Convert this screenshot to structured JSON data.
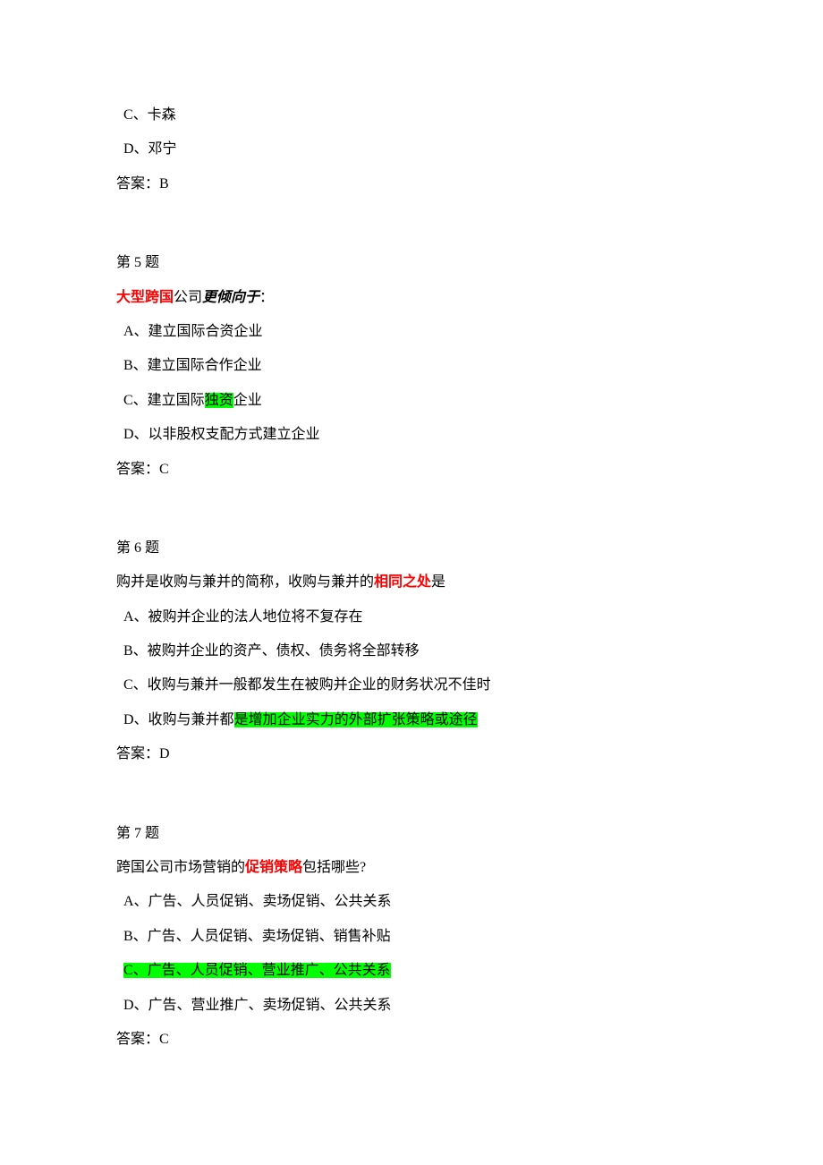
{
  "colors": {
    "text": "#000000",
    "highlight_bg": "#00ff00",
    "emphasis": "#ff0000",
    "background": "#ffffff"
  },
  "top": {
    "optC": "C、卡森",
    "optD": "D、邓宁",
    "answer": "答案：B"
  },
  "q5": {
    "title": "第 5 题",
    "stem_red": "大型跨国",
    "stem_mid": "公司",
    "stem_italic": "更倾向于",
    "stem_tail": "：",
    "optA": "A、建立国际合资企业",
    "optB": "B、建立国际合作企业",
    "optC_pre": "C、建立国际",
    "optC_hl": "独资",
    "optC_post": "企业",
    "optD": "D、以非股权支配方式建立企业",
    "answer": "答案：C"
  },
  "q6": {
    "title": "第 6 题",
    "stem_pre": "购并是收购与兼并的简称，收购与兼并的",
    "stem_red": "相同之处",
    "stem_post": "是",
    "optA": "A、被购并企业的法人地位将不复存在",
    "optB": "B、被购并企业的资产、债权、债务将全部转移",
    "optC": "C、收购与兼并一般都发生在被购并企业的财务状况不佳时",
    "optD_pre": "D、收购与兼并都",
    "optD_hl": "是增加企业实力的外部扩张策略或途径",
    "answer": "答案：D"
  },
  "q7": {
    "title": "第 7 题",
    "stem_pre": "跨国公司市场营销的",
    "stem_red": "促销策略",
    "stem_post": "包括哪些?",
    "optA": "A、广告、人员促销、卖场促销、公共关系",
    "optB": "B、广告、人员促销、卖场促销、销售补贴",
    "optC_hl": "C、广告、人员促销、营业推广、公共关系",
    "optD": "D、广告、营业推广、卖场促销、公共关系",
    "answer": "答案：C"
  }
}
